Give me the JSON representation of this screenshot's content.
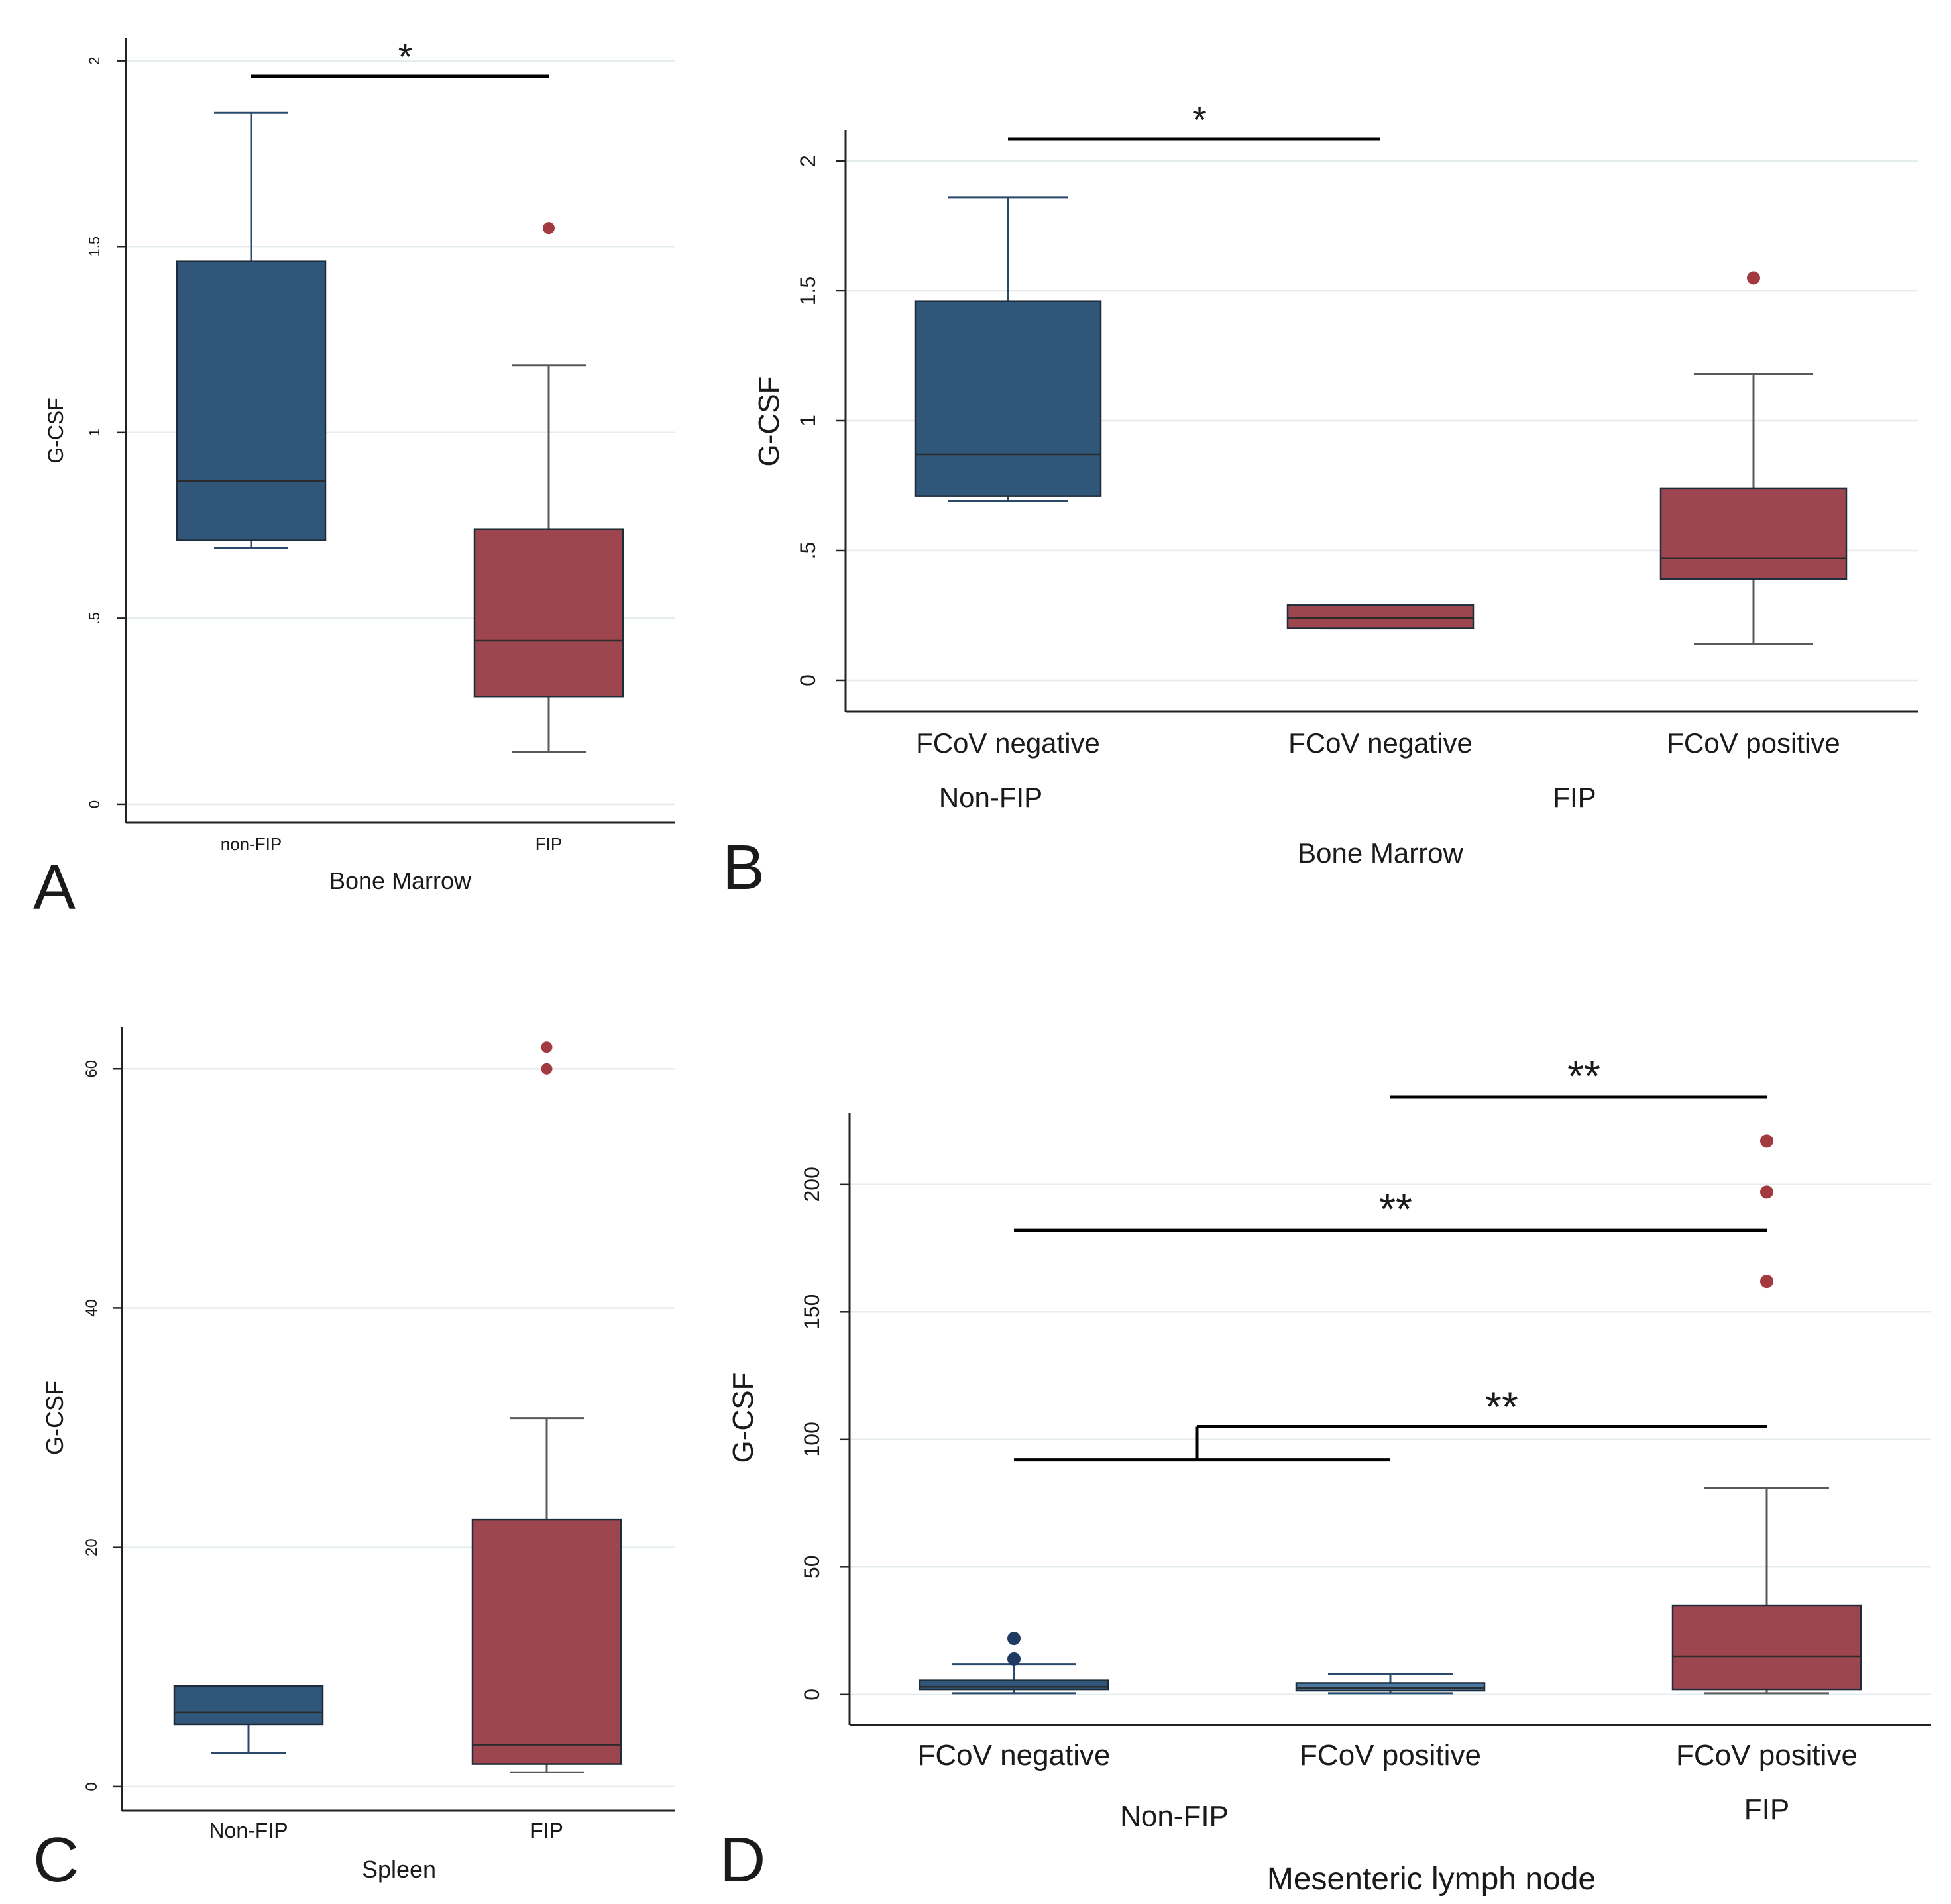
{
  "colors": {
    "nonfip_fill": "#30567a",
    "nonfip_fill_light": "#4a79a6",
    "fip_fill": "#9e4650",
    "outlier_blue": "#1f3b62",
    "outlier_red": "#a33a40",
    "grid": "#e4ecee",
    "axis": "#222222",
    "whisker_blue": "#2a4a6b",
    "whisker_red": "#5a5a5a"
  },
  "chart_data": [
    {
      "panel": "A",
      "type": "box",
      "ylabel": "G-CSF",
      "xlabel": "Bone Marrow",
      "ylim": [
        -0.05,
        2.06
      ],
      "yticks": [
        0,
        0.5,
        1,
        1.5,
        2
      ],
      "ytick_labels": [
        "0",
        ".5",
        "1",
        "1.5",
        "2"
      ],
      "grid": true,
      "boxes": [
        {
          "label": "non-FIP",
          "group": "nonfip",
          "min": 0.69,
          "q1": 0.71,
          "median": 0.87,
          "q3": 1.46,
          "max": 1.86,
          "outliers": []
        },
        {
          "label": "FIP",
          "group": "fip",
          "min": 0.14,
          "q1": 0.29,
          "median": 0.44,
          "q3": 0.74,
          "max": 1.18,
          "outliers": [
            1.55
          ]
        }
      ],
      "significance": [
        {
          "label": "*",
          "from": 0,
          "to": 1,
          "y": 1.95
        }
      ]
    },
    {
      "panel": "B",
      "type": "box",
      "ylabel": "G-CSF",
      "xlabel": "Bone Marrow",
      "ylim": [
        -0.12,
        2.12
      ],
      "yticks": [
        0,
        0.5,
        1,
        1.5,
        2
      ],
      "ytick_labels": [
        "0",
        ".5",
        "1",
        "1.5",
        "2"
      ],
      "grid": true,
      "boxes": [
        {
          "label": "FCoV negative",
          "group": "nonfip",
          "min": 0.69,
          "q1": 0.71,
          "median": 0.87,
          "q3": 1.46,
          "max": 1.86,
          "outliers": []
        },
        {
          "label": "FCoV negative",
          "group": "fip",
          "min": 0.2,
          "q1": 0.2,
          "median": 0.24,
          "q3": 0.29,
          "max": 0.29,
          "outliers": []
        },
        {
          "label": "FCoV positive",
          "group": "fip",
          "min": 0.14,
          "q1": 0.39,
          "median": 0.47,
          "q3": 0.74,
          "max": 1.18,
          "outliers": [
            1.55
          ]
        }
      ],
      "group_labels": [
        {
          "label": "Non-FIP",
          "boxes": [
            0
          ]
        },
        {
          "label": "FIP",
          "boxes": [
            1,
            2
          ]
        }
      ],
      "significance": [
        {
          "label": "*",
          "from": 0,
          "to": 1,
          "y": 2.08
        }
      ]
    },
    {
      "panel": "C",
      "type": "box",
      "ylabel": "G-CSF",
      "xlabel": "Spleen",
      "ylim": [
        -2,
        63.5
      ],
      "yticks": [
        0,
        20,
        40,
        60
      ],
      "ytick_labels": [
        "0",
        "20",
        "40",
        "60"
      ],
      "grid": true,
      "boxes": [
        {
          "label": "Non-FIP",
          "group": "nonfip",
          "min": 2.8,
          "q1": 5.2,
          "median": 6.2,
          "q3": 8.4,
          "max": 8.4,
          "outliers": []
        },
        {
          "label": "FIP",
          "group": "fip",
          "min": 1.2,
          "q1": 1.9,
          "median": 3.5,
          "q3": 22.3,
          "max": 30.8,
          "outliers": [
            60.0,
            61.8
          ]
        }
      ],
      "significance": []
    },
    {
      "panel": "D",
      "type": "box",
      "ylabel": "G-CSF",
      "xlabel": "Mesenteric lymph node",
      "ylim": [
        -12,
        228
      ],
      "yticks": [
        0,
        50,
        100,
        150,
        200
      ],
      "ytick_labels": [
        "0",
        "50",
        "100",
        "150",
        "200"
      ],
      "grid": true,
      "boxes": [
        {
          "label": "FCoV negative",
          "group": "nonfip",
          "min": 0.5,
          "q1": 2,
          "median": 3,
          "q3": 5.5,
          "max": 12,
          "outliers": [
            14,
            22
          ]
        },
        {
          "label": "FCoV positive",
          "group": "nonfip_light",
          "min": 0.5,
          "q1": 1.5,
          "median": 2.5,
          "q3": 4.5,
          "max": 8,
          "outliers": []
        },
        {
          "label": "FCoV positive",
          "group": "fip",
          "min": 0.5,
          "q1": 2,
          "median": 15,
          "q3": 35,
          "max": 81,
          "outliers": [
            162,
            197,
            217
          ]
        }
      ],
      "group_labels": [
        {
          "label": "Non-FIP",
          "boxes": [
            0,
            1
          ]
        },
        {
          "label": "FIP",
          "boxes": [
            2
          ]
        }
      ],
      "significance": [
        {
          "label": "**",
          "from": 1,
          "to": 2,
          "y": 235
        },
        {
          "label": "**",
          "from": 0,
          "to": 2,
          "y": 182
        },
        {
          "label": "**",
          "from": 0.5,
          "to": 2,
          "y": 105,
          "bracket": {
            "from": 0,
            "to": 1,
            "y": 92
          }
        }
      ]
    }
  ]
}
